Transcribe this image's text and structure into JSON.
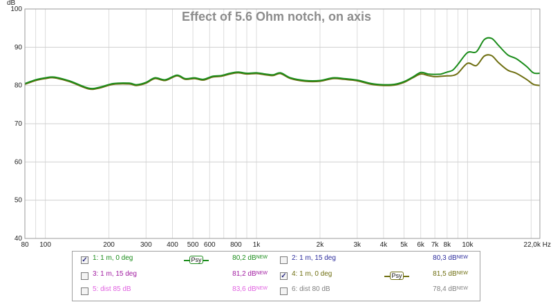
{
  "chart_data": {
    "type": "line",
    "title": "Effect of 5.6 Ohm notch, on axis",
    "ylabel": "dB",
    "x_unit": "Hz",
    "x_scale": "log",
    "xlim": [
      80,
      22000
    ],
    "ylim": [
      40,
      100
    ],
    "grid": true,
    "y_ticks": [
      40,
      50,
      60,
      70,
      80,
      90,
      100
    ],
    "x_tick_values": [
      80,
      100,
      200,
      300,
      400,
      500,
      600,
      800,
      1000,
      2000,
      3000,
      4000,
      5000,
      6000,
      7000,
      8000,
      10000,
      22000
    ],
    "x_tick_labels": [
      "80",
      "100",
      "200",
      "300",
      "400",
      "500",
      "600",
      "800",
      "1k",
      "2k",
      "3k",
      "4k",
      "5k",
      "6k",
      "7k",
      "8k",
      "10k",
      "22,0k Hz"
    ],
    "series": [
      {
        "color": "#1a8c1a",
        "x": [
          80,
          90,
          100,
          110,
          130,
          160,
          180,
          210,
          250,
          270,
          300,
          330,
          370,
          420,
          460,
          510,
          560,
          620,
          680,
          750,
          820,
          900,
          1000,
          1100,
          1200,
          1300,
          1450,
          1700,
          2000,
          2300,
          2600,
          3000,
          3500,
          4000,
          4500,
          5000,
          5500,
          6000,
          6500,
          7000,
          7500,
          8000,
          8500,
          9000,
          10000,
          11000,
          12000,
          13000,
          14000,
          15500,
          17000,
          19000,
          20500,
          22000
        ],
        "y": [
          80.5,
          81.5,
          82.0,
          82.2,
          81.2,
          79.3,
          79.5,
          80.5,
          80.6,
          80.2,
          80.8,
          82.0,
          81.5,
          82.7,
          81.8,
          82.0,
          81.6,
          82.4,
          82.6,
          83.2,
          83.5,
          83.2,
          83.3,
          83.0,
          82.8,
          83.3,
          82.0,
          81.3,
          81.3,
          82.0,
          81.8,
          81.4,
          80.5,
          80.2,
          80.3,
          81.0,
          82.2,
          83.4,
          83.0,
          82.9,
          83.0,
          83.5,
          84.0,
          85.5,
          88.6,
          88.8,
          92.0,
          92.3,
          90.5,
          88.0,
          87.0,
          85.0,
          83.3,
          83.2
        ]
      },
      {
        "color": "#6e6e10",
        "x": [
          80,
          90,
          100,
          110,
          130,
          160,
          180,
          210,
          250,
          270,
          300,
          330,
          370,
          420,
          460,
          510,
          560,
          620,
          680,
          750,
          820,
          900,
          1000,
          1100,
          1200,
          1300,
          1450,
          1700,
          2000,
          2300,
          2600,
          3000,
          3500,
          4000,
          4500,
          5000,
          5500,
          6000,
          6500,
          7000,
          7500,
          8000,
          8500,
          9000,
          10000,
          11000,
          12000,
          13000,
          14000,
          15500,
          17000,
          19000,
          20500,
          22000
        ],
        "y": [
          80.3,
          81.3,
          81.8,
          82.0,
          81.0,
          79.1,
          79.3,
          80.3,
          80.4,
          80.0,
          80.6,
          81.8,
          81.3,
          82.5,
          81.6,
          81.8,
          81.4,
          82.2,
          82.4,
          83.0,
          83.3,
          83.0,
          83.1,
          82.8,
          82.6,
          83.1,
          81.8,
          81.1,
          81.1,
          81.8,
          81.6,
          81.2,
          80.3,
          80.0,
          80.1,
          80.8,
          82.0,
          83.0,
          82.6,
          82.3,
          82.4,
          82.5,
          82.6,
          83.2,
          85.8,
          85.2,
          87.7,
          87.8,
          86.0,
          84.0,
          83.2,
          81.6,
          80.3,
          80.0
        ]
      }
    ]
  },
  "legend": {
    "entries": [
      {
        "label": "1: 1 m, 0 deg",
        "value": "80,2 dB",
        "badge": "NEW",
        "checked": true,
        "checkmark": "✓",
        "color": "#1a8c1a",
        "psy": true,
        "psy_label": "Psy",
        "line_color": "#1a8c1a"
      },
      {
        "label": "2: 1 m, 15 deg",
        "value": "80,3 dB",
        "badge": "NEW",
        "checked": false,
        "checkmark": "",
        "color": "#2c2c9c",
        "psy": false
      },
      {
        "label": "3: 1 m, 15 deg",
        "value": "81,2 dB",
        "badge": "NEW",
        "checked": false,
        "checkmark": "",
        "color": "#a01aa0",
        "psy": false
      },
      {
        "label": "4: 1 m, 0 deg",
        "value": "81,5 dB",
        "badge": "NEW",
        "checked": true,
        "checkmark": "✓",
        "color": "#6e6e10",
        "psy": true,
        "psy_label": "Psy",
        "line_color": "#6e6e10"
      },
      {
        "label": "5: dist 85 dB",
        "value": "83,6 dB",
        "badge": "NEW",
        "checked": false,
        "checkmark": "",
        "color": "#e060e0",
        "psy": false
      },
      {
        "label": "6: dist 80 dB",
        "value": "78,4 dB",
        "badge": "NEW",
        "checked": false,
        "checkmark": "",
        "color": "#808080",
        "psy": false
      }
    ]
  }
}
